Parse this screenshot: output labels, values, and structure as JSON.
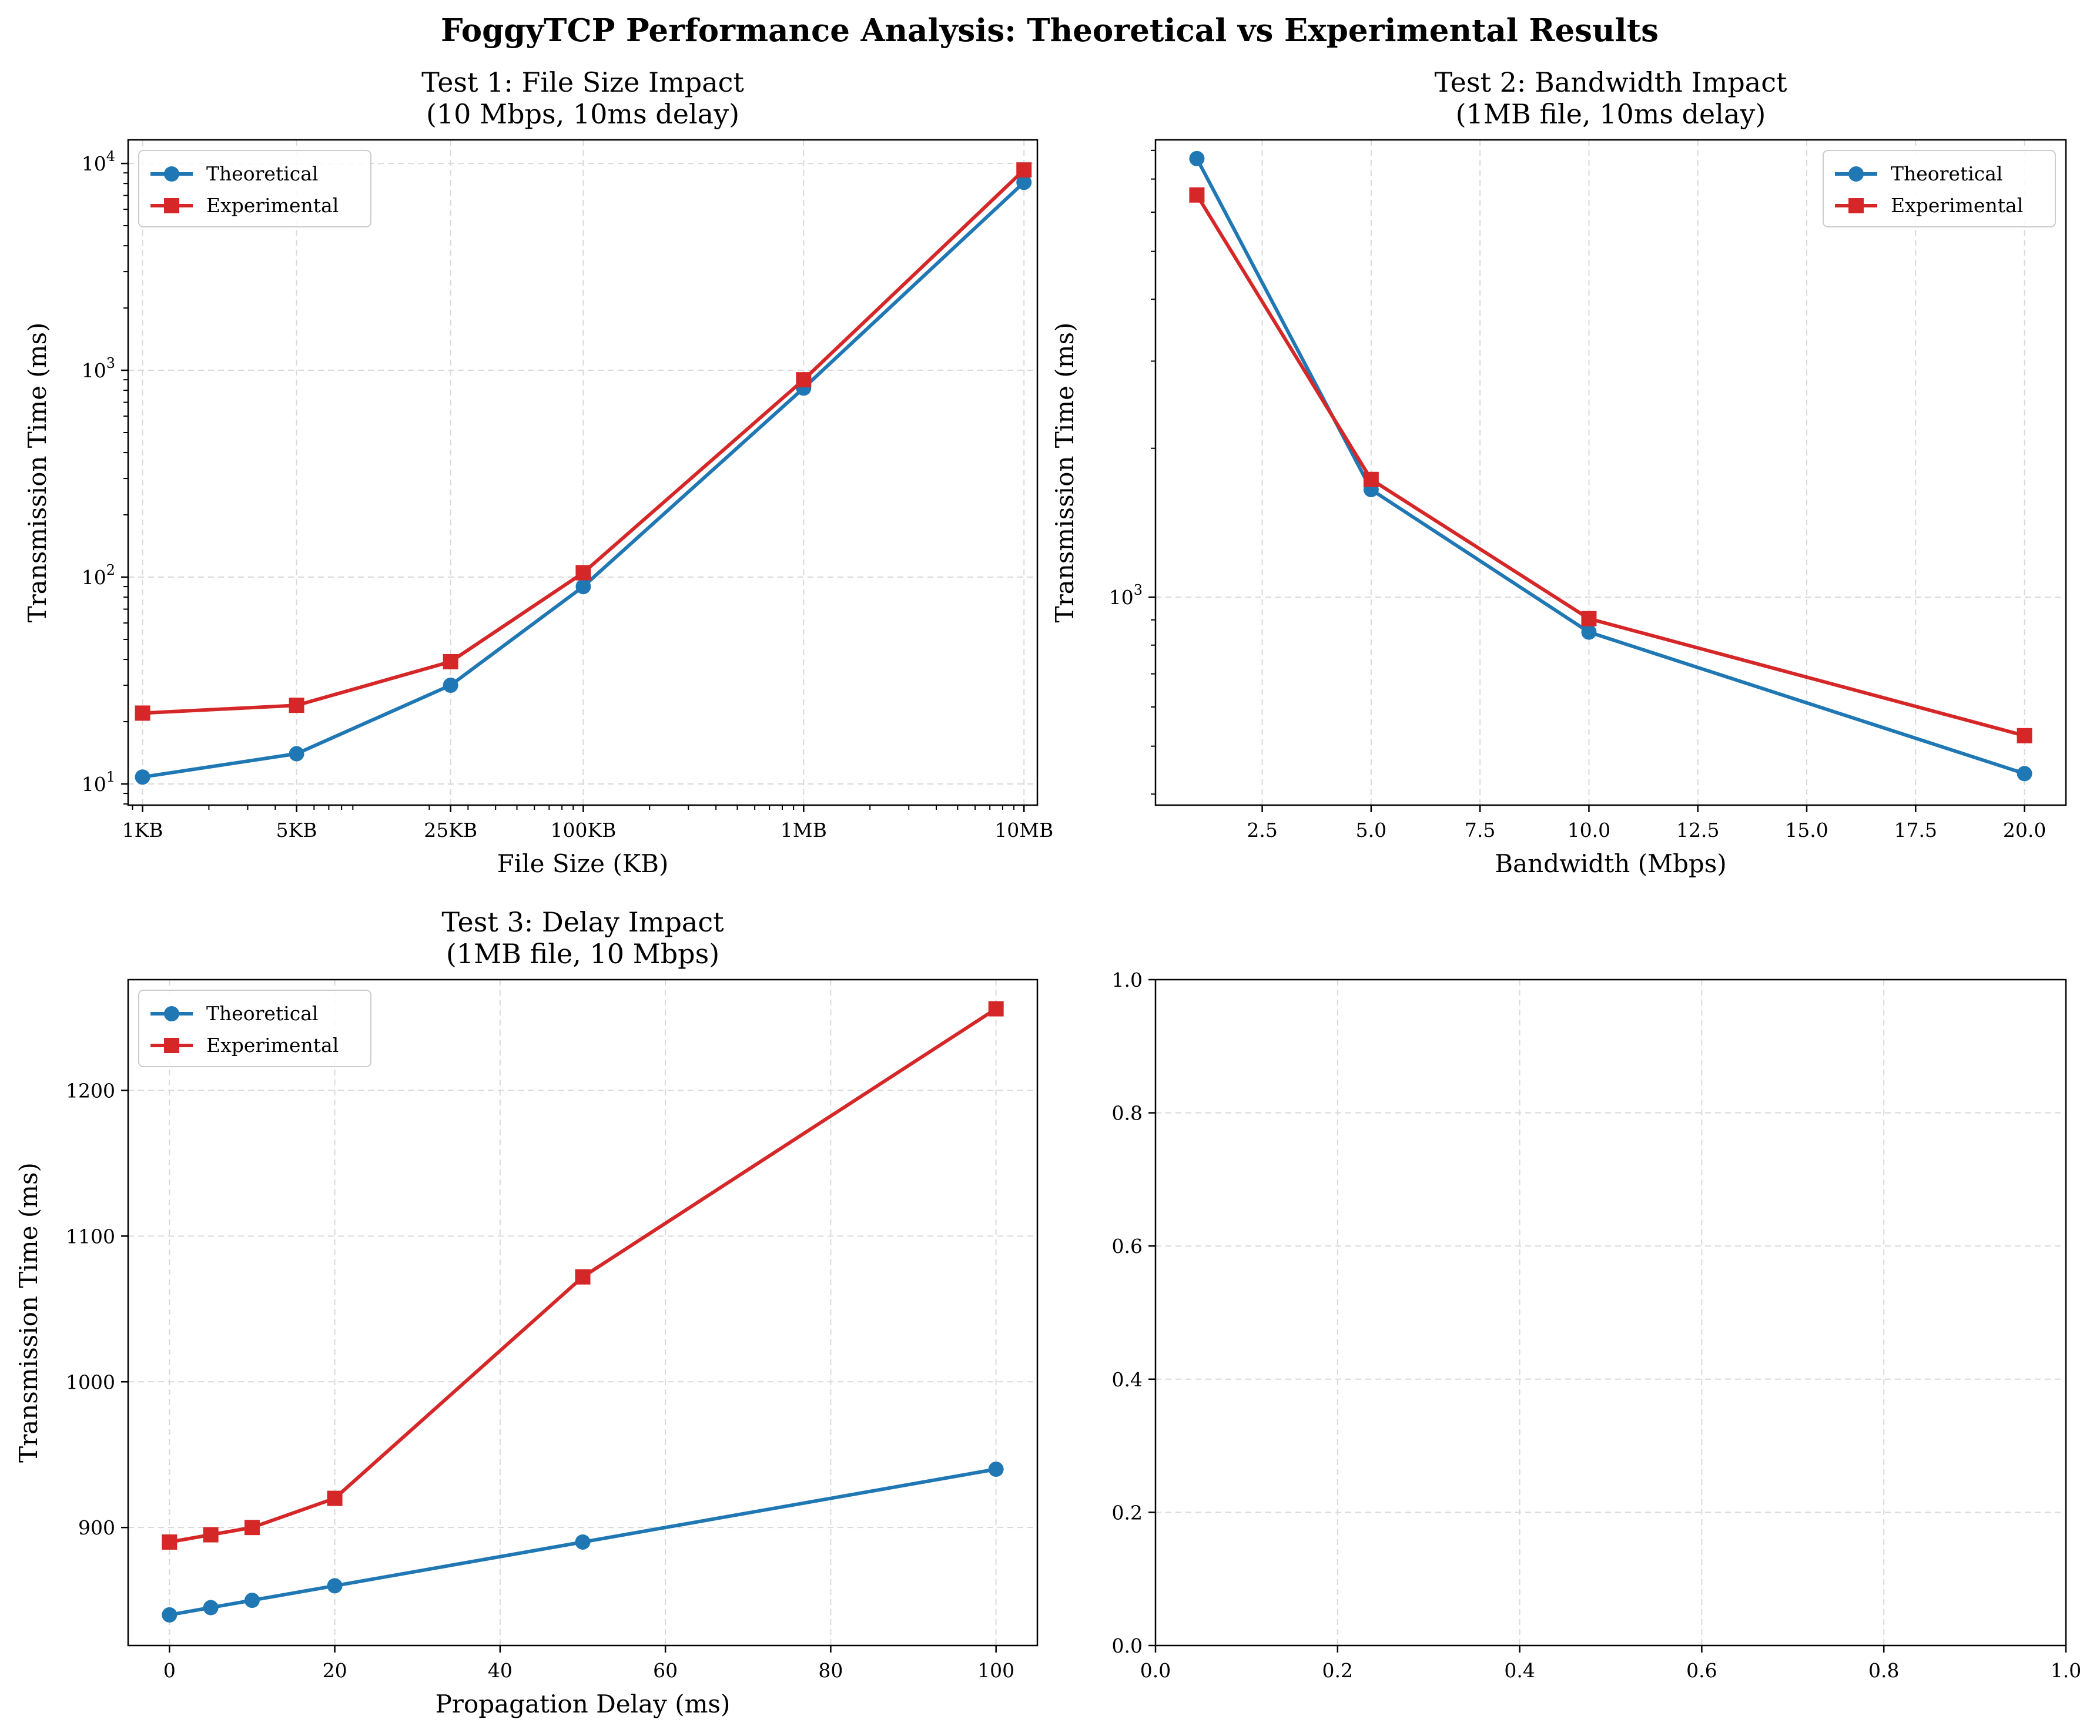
{
  "suptitle": "FoggyTCP Performance Analysis: Theoretical vs Experimental Results",
  "colors": {
    "theoretical": "#1f77b4",
    "experimental": "#d62728",
    "grid": "#d9d9d9"
  },
  "chart_data": [
    {
      "id": "test1",
      "type": "line",
      "title_line1": "Test 1: File Size Impact",
      "title_line2": "(10 Mbps, 10ms delay)",
      "xlabel": "File Size (KB)",
      "ylabel": "Transmission Time (ms)",
      "xscale": "log",
      "yscale": "log",
      "xlim": [
        0.86,
        11500
      ],
      "ylim": [
        7.9,
        13000
      ],
      "x": [
        1,
        5,
        25,
        100,
        1000,
        10000
      ],
      "xticks": [
        {
          "value": 1,
          "label": "1KB"
        },
        {
          "value": 5,
          "label": "5KB"
        },
        {
          "value": 25,
          "label": "25KB"
        },
        {
          "value": 100,
          "label": "100KB"
        },
        {
          "value": 1000,
          "label": "1MB"
        },
        {
          "value": 10000,
          "label": "10MB"
        }
      ],
      "yticks": [
        {
          "value": 10,
          "base": "10",
          "exp": "1"
        },
        {
          "value": 100,
          "base": "10",
          "exp": "2"
        },
        {
          "value": 1000,
          "base": "10",
          "exp": "3"
        },
        {
          "value": 10000,
          "base": "10",
          "exp": "4"
        }
      ],
      "grid": true,
      "legend": "top-left",
      "series": [
        {
          "name": "Theoretical",
          "marker": "circle",
          "values": [
            10.8,
            14,
            30,
            90,
            820,
            8100
          ]
        },
        {
          "name": "Experimental",
          "marker": "square",
          "values": [
            22,
            24,
            39,
            105,
            900,
            9300
          ]
        }
      ]
    },
    {
      "id": "test2",
      "type": "line",
      "title_line1": "Test 2: Bandwidth Impact",
      "title_line2": "(1MB file, 10ms delay)",
      "xlabel": "Bandwidth (Mbps)",
      "ylabel": "Transmission Time (ms)",
      "xscale": "linear",
      "yscale": "log",
      "xlim": [
        0.05,
        20.95
      ],
      "ylim": [
        380,
        8400
      ],
      "x": [
        1,
        5,
        10,
        20
      ],
      "xticks": [
        {
          "value": 2.5,
          "label": "2.5"
        },
        {
          "value": 5,
          "label": "5.0"
        },
        {
          "value": 7.5,
          "label": "7.5"
        },
        {
          "value": 10,
          "label": "10.0"
        },
        {
          "value": 12.5,
          "label": "12.5"
        },
        {
          "value": 15,
          "label": "15.0"
        },
        {
          "value": 17.5,
          "label": "17.5"
        },
        {
          "value": 20,
          "label": "20.0"
        }
      ],
      "yticks": [
        {
          "value": 1000,
          "base": "10",
          "exp": "3"
        }
      ],
      "grid": true,
      "legend": "top-right",
      "series": [
        {
          "name": "Theoretical",
          "marker": "circle",
          "values": [
            7700,
            1650,
            850,
            440
          ]
        },
        {
          "name": "Experimental",
          "marker": "square",
          "values": [
            6500,
            1730,
            905,
            525
          ]
        }
      ]
    },
    {
      "id": "test3",
      "type": "line",
      "title_line1": "Test 3: Delay Impact",
      "title_line2": "(1MB file, 10 Mbps)",
      "xlabel": "Propagation Delay (ms)",
      "ylabel": "Transmission Time (ms)",
      "xscale": "linear",
      "yscale": "linear",
      "xlim": [
        -5,
        105
      ],
      "ylim": [
        819,
        1276
      ],
      "x": [
        0,
        5,
        10,
        20,
        50,
        100
      ],
      "xticks": [
        {
          "value": 0,
          "label": "0"
        },
        {
          "value": 20,
          "label": "20"
        },
        {
          "value": 40,
          "label": "40"
        },
        {
          "value": 60,
          "label": "60"
        },
        {
          "value": 80,
          "label": "80"
        },
        {
          "value": 100,
          "label": "100"
        }
      ],
      "yticks": [
        {
          "value": 900,
          "label": "900"
        },
        {
          "value": 1000,
          "label": "1000"
        },
        {
          "value": 1100,
          "label": "1100"
        },
        {
          "value": 1200,
          "label": "1200"
        }
      ],
      "grid": true,
      "legend": "top-left",
      "series": [
        {
          "name": "Theoretical",
          "marker": "circle",
          "values": [
            840,
            845,
            850,
            860,
            890,
            940
          ]
        },
        {
          "name": "Experimental",
          "marker": "square",
          "values": [
            890,
            895,
            900,
            920,
            1072,
            1256
          ]
        }
      ]
    },
    {
      "id": "empty",
      "type": "line",
      "title_line1": "",
      "title_line2": "",
      "xlabel": "",
      "ylabel": "",
      "xscale": "linear",
      "yscale": "linear",
      "xlim": [
        0,
        1
      ],
      "ylim": [
        0,
        1
      ],
      "x": [],
      "xticks": [
        {
          "value": 0,
          "label": "0.0"
        },
        {
          "value": 0.2,
          "label": "0.2"
        },
        {
          "value": 0.4,
          "label": "0.4"
        },
        {
          "value": 0.6,
          "label": "0.6"
        },
        {
          "value": 0.8,
          "label": "0.8"
        },
        {
          "value": 1,
          "label": "1.0"
        }
      ],
      "yticks": [
        {
          "value": 0,
          "label": "0.0"
        },
        {
          "value": 0.2,
          "label": "0.2"
        },
        {
          "value": 0.4,
          "label": "0.4"
        },
        {
          "value": 0.6,
          "label": "0.6"
        },
        {
          "value": 0.8,
          "label": "0.8"
        },
        {
          "value": 1,
          "label": "1.0"
        }
      ],
      "grid": true,
      "legend": "",
      "series": []
    }
  ]
}
